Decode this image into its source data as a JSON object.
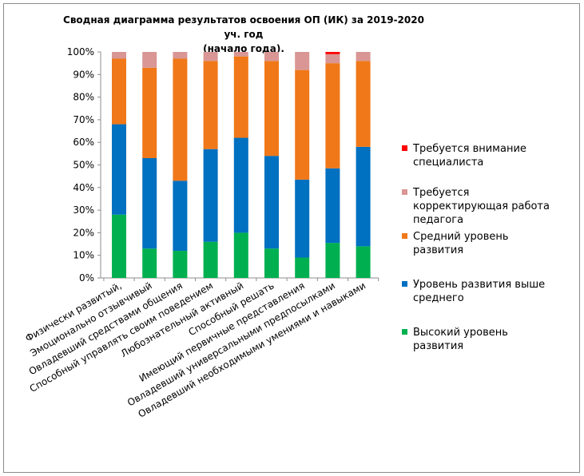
{
  "chart_data": {
    "type": "bar",
    "stacked": true,
    "percent": true,
    "title_line1": "Сводная диаграмма результатов освоения ОП  (ИК) за 2019-2020 уч. год",
    "title_line2": "(начало года).",
    "xlabel": "",
    "ylabel": "",
    "ylim": [
      0,
      100
    ],
    "yticks": [
      "0%",
      "10%",
      "20%",
      "30%",
      "40%",
      "50%",
      "60%",
      "70%",
      "80%",
      "90%",
      "100%"
    ],
    "categories": [
      "Физически развитый,",
      "Эмоционально отзывчивый",
      "Овладевший средствами общения",
      "Способный управлять своим поведением",
      "Любознательный активный",
      "Способный решать",
      "Имеющий первичные представления",
      "Овладевший универсальными  предпосылками",
      "Овладевший необходимыми умениями и навыками"
    ],
    "series": [
      {
        "name": "Высокий уровень развития",
        "color": "#00b050",
        "values": [
          28,
          13,
          12,
          16,
          20,
          13,
          9,
          15.5,
          14
        ]
      },
      {
        "name": "Уровень развития выше среднего",
        "color": "#0070c0",
        "values": [
          40,
          40,
          31,
          41,
          42,
          41,
          34.5,
          33,
          44
        ]
      },
      {
        "name": "Средний уровень развития",
        "color": "#f07818",
        "values": [
          29,
          40,
          54,
          39,
          36,
          42,
          48.5,
          46.5,
          38
        ]
      },
      {
        "name": "Требуется корректирующая работа педагога",
        "color": "#d99694",
        "values": [
          3,
          7,
          3,
          4,
          2,
          4,
          8,
          4,
          4
        ]
      },
      {
        "name": "Требуется внимание специалиста",
        "color": "#ff0000",
        "values": [
          0,
          0,
          0,
          0,
          0,
          0,
          0,
          1,
          0
        ]
      }
    ],
    "legend_order": [
      "Требуется внимание специалиста",
      "Требуется корректирующая работа педагога",
      "Средний уровень развития",
      "Уровень развития выше среднего",
      "Высокий уровень развития"
    ],
    "legend_lines": [
      [
        "Требуется внимание",
        "специалиста"
      ],
      [
        "Требуется",
        "корректирующая работа",
        "педагога"
      ],
      [
        "Средний уровень",
        "развития"
      ],
      [
        "Уровень развития выше",
        "среднего"
      ],
      [
        "Высокий уровень",
        "развития"
      ]
    ],
    "legend_position": "right",
    "grid": false
  }
}
